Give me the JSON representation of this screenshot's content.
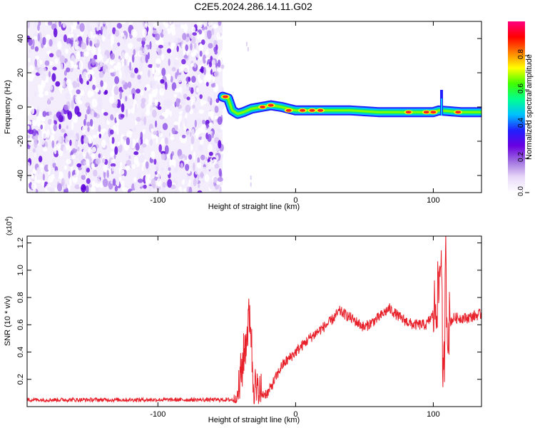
{
  "figure": {
    "title": "C2E5.2024.286.14.11.G02"
  },
  "chart_data": [
    {
      "type": "heatmap",
      "xlabel": "Height of straight line (km)",
      "ylabel": "Frequency (Hz)",
      "xlim": [
        -195,
        135
      ],
      "ylim": [
        -50,
        50
      ],
      "xticks": [
        -100,
        0,
        100
      ],
      "xtick_labels": [
        "-100",
        "0",
        "100"
      ],
      "yticks": [
        -40,
        -20,
        0,
        20,
        40
      ],
      "ytick_labels": [
        "-40",
        "-20",
        "0",
        "20",
        "40"
      ],
      "colorbar": {
        "label": "Normalized spectral amplitude",
        "range": [
          0,
          1
        ],
        "ticks": [
          0.0,
          0.2,
          0.4,
          0.6,
          0.8
        ],
        "tick_labels": [
          "0.0",
          "0.2",
          "0.4",
          "0.6",
          "0.8"
        ],
        "colors": [
          "#ffffff",
          "#e8d8f8",
          "#a070e0",
          "#6a00e0",
          "#2020ff",
          "#00c0ff",
          "#00ff90",
          "#40ff00",
          "#ffff00",
          "#ff8000",
          "#ff0000",
          "#ff0080"
        ]
      },
      "noise_region_x": [
        -195,
        -53
      ],
      "ridge": [
        {
          "x": -53,
          "f": 6
        },
        {
          "x": -49,
          "f": 5
        },
        {
          "x": -46,
          "f": -2
        },
        {
          "x": -42,
          "f": -4
        },
        {
          "x": -38,
          "f": -3
        },
        {
          "x": -32,
          "f": -1
        },
        {
          "x": -25,
          "f": 0
        },
        {
          "x": -18,
          "f": 1
        },
        {
          "x": -10,
          "f": 0
        },
        {
          "x": 0,
          "f": -2
        },
        {
          "x": 20,
          "f": -2
        },
        {
          "x": 40,
          "f": -2
        },
        {
          "x": 60,
          "f": -3
        },
        {
          "x": 80,
          "f": -3
        },
        {
          "x": 100,
          "f": -3
        },
        {
          "x": 104,
          "f": -2
        },
        {
          "x": 120,
          "f": -3
        },
        {
          "x": 135,
          "f": -3
        }
      ],
      "spike": {
        "x": 106,
        "f_range": [
          -5,
          10
        ]
      },
      "hotspots": [
        {
          "x": -51,
          "f": 6
        },
        {
          "x": -24,
          "f": 0
        },
        {
          "x": -18,
          "f": 1
        },
        {
          "x": -5,
          "f": -2
        },
        {
          "x": 5,
          "f": -2
        },
        {
          "x": 12,
          "f": -2
        },
        {
          "x": 18,
          "f": -2
        },
        {
          "x": 82,
          "f": -3
        },
        {
          "x": 95,
          "f": -3
        },
        {
          "x": 100,
          "f": -3
        },
        {
          "x": 118,
          "f": -3
        }
      ]
    },
    {
      "type": "line",
      "xlabel": "Height of straight line (km)",
      "ylabel": "SNR (10 * v/v)",
      "scale_label": "(x10",
      "scale_exponent": "4",
      "scale_close": ")",
      "xlim": [
        -195,
        135
      ],
      "ylim": [
        0.0,
        1.25
      ],
      "xticks": [
        -100,
        0,
        100
      ],
      "xtick_labels": [
        "-100",
        "0",
        "100"
      ],
      "yticks": [
        0.2,
        0.4,
        0.6,
        0.8,
        1.0,
        1.2
      ],
      "ytick_labels": [
        "0.2",
        "0.4",
        "0.6",
        "0.8",
        "1.0",
        "1.2"
      ],
      "series": [
        {
          "color": "#e8202a",
          "points": [
            [
              -195,
              0.05
            ],
            [
              -180,
              0.05
            ],
            [
              -160,
              0.05
            ],
            [
              -140,
              0.05
            ],
            [
              -120,
              0.05
            ],
            [
              -100,
              0.05
            ],
            [
              -80,
              0.05
            ],
            [
              -60,
              0.05
            ],
            [
              -45,
              0.05
            ],
            [
              -42,
              0.08
            ],
            [
              -38,
              0.35
            ],
            [
              -33,
              0.7
            ],
            [
              -31,
              0.2
            ],
            [
              -28,
              0.08
            ],
            [
              -20,
              0.1
            ],
            [
              -10,
              0.3
            ],
            [
              0,
              0.4
            ],
            [
              10,
              0.5
            ],
            [
              20,
              0.58
            ],
            [
              25,
              0.62
            ],
            [
              32,
              0.7
            ],
            [
              40,
              0.65
            ],
            [
              50,
              0.58
            ],
            [
              60,
              0.65
            ],
            [
              68,
              0.72
            ],
            [
              76,
              0.65
            ],
            [
              85,
              0.6
            ],
            [
              95,
              0.6
            ],
            [
              100,
              0.68
            ],
            [
              104,
              0.85
            ],
            [
              106,
              1.2
            ],
            [
              107,
              0.08
            ],
            [
              108,
              0.3
            ],
            [
              109,
              1.1
            ],
            [
              110,
              0.6
            ],
            [
              115,
              0.65
            ],
            [
              125,
              0.65
            ],
            [
              135,
              0.68
            ]
          ]
        }
      ]
    }
  ]
}
